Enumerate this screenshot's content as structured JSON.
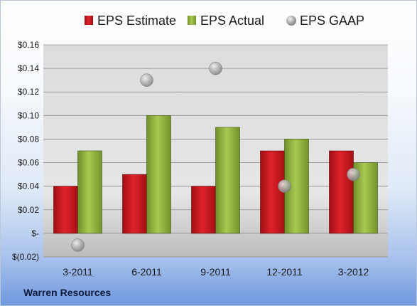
{
  "company": "Warren Resources",
  "colors": {
    "estimate": "#c0141b",
    "actual": "#8fb43a",
    "gaap": "#a9a9a9"
  },
  "chart_data": {
    "type": "bar",
    "categories": [
      "3-2011",
      "6-2011",
      "9-2011",
      "12-2011",
      "3-2012"
    ],
    "series": [
      {
        "name": "EPS Estimate",
        "kind": "bar",
        "values": [
          0.04,
          0.05,
          0.04,
          0.07,
          0.07
        ]
      },
      {
        "name": "EPS Actual",
        "kind": "bar",
        "values": [
          0.07,
          0.1,
          0.09,
          0.08,
          0.06
        ]
      },
      {
        "name": "EPS GAAP",
        "kind": "marker",
        "values": [
          -0.01,
          0.13,
          0.14,
          0.04,
          0.05
        ]
      }
    ],
    "yticks": [
      -0.02,
      0,
      0.02,
      0.04,
      0.06,
      0.08,
      0.1,
      0.12,
      0.14,
      0.16
    ],
    "ytick_labels": [
      "$(0.02)",
      "$-",
      "$0.02",
      "$0.04",
      "$0.06",
      "$0.08",
      "$0.10",
      "$0.12",
      "$0.14",
      "$0.16"
    ],
    "ylim": [
      -0.02,
      0.16
    ],
    "grid": true,
    "legend_position": "top"
  }
}
